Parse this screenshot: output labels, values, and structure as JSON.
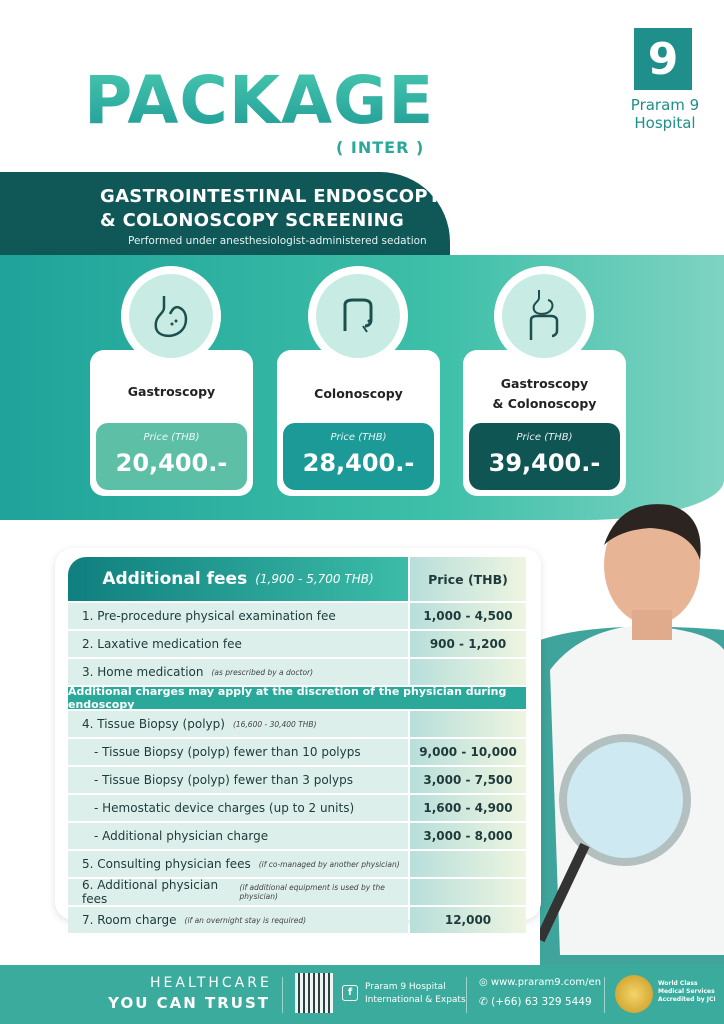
{
  "header": {
    "title": "PACKAGE",
    "subtitle": "( INTER )",
    "logo": {
      "mark": "9",
      "name_line1": "Praram 9",
      "name_line2": "Hospital"
    }
  },
  "banner": {
    "title_line1": "GASTROINTESTINAL ENDOSCOPY",
    "title_line2": "& COLONOSCOPY SCREENING",
    "subtitle": "Performed under anesthesiologist-administered sedation"
  },
  "packages": [
    {
      "name": "Gastroscopy",
      "price_label": "Price (THB)",
      "price": "20,400.-",
      "color": "#5cbfa6",
      "icon": "stomach-icon"
    },
    {
      "name": "Colonoscopy",
      "price_label": "Price (THB)",
      "price": "28,400.-",
      "color": "#1b9a98",
      "icon": "colon-icon"
    },
    {
      "name_line1": "Gastroscopy",
      "name_line2": "& Colonoscopy",
      "price_label": "Price (THB)",
      "price": "39,400.-",
      "color": "#0e5554",
      "icon": "digestive-system-icon"
    }
  ],
  "fees": {
    "title": "Additional fees",
    "range": "(1,900 - 5,700 THB)",
    "price_header": "Price (THB)",
    "rows": [
      {
        "label": "1. Pre-procedure physical examination fee",
        "note": "",
        "price": "1,000 - 4,500"
      },
      {
        "label": "2. Laxative medication fee",
        "note": "",
        "price": "900 - 1,200"
      },
      {
        "label": "3. Home medication",
        "note": "(as prescribed by a doctor)",
        "price": ""
      }
    ],
    "discretion_note": "Additional charges may apply at the discretion of the physician during endoscopy",
    "rows2": [
      {
        "label": "4. Tissue Biopsy (polyp)",
        "note": "(16,600 - 30,400 THB)",
        "price": ""
      },
      {
        "label": "- Tissue Biopsy (polyp) fewer than 10 polyps",
        "note": "",
        "price": "9,000 - 10,000"
      },
      {
        "label": "- Tissue Biopsy (polyp) fewer than 3 polyps",
        "note": "",
        "price": "3,000 - 7,500"
      },
      {
        "label": "- Hemostatic device charges (up to 2 units)",
        "note": "",
        "price": "1,600 - 4,900"
      },
      {
        "label": "- Additional physician charge",
        "note": "",
        "price": "3,000 - 8,000"
      },
      {
        "label": "5. Consulting physician fees",
        "note": "(if co-managed by another physician)",
        "price": ""
      },
      {
        "label": "6. Additional physician fees",
        "note": "(if additional equipment is used by the physician)",
        "price": ""
      },
      {
        "label": "7. Room charge",
        "note": "(if an overnight stay is required)",
        "price": "12,000"
      }
    ]
  },
  "footer": {
    "slogan1": "HEALTHCARE",
    "slogan2": "YOU CAN TRUST",
    "facebook_line1": "Praram 9 Hospital",
    "facebook_line2": "International & Expats",
    "website": "www.praram9.com/en",
    "phone": "(+66) 63 329 5449",
    "jci_line1": "World Class",
    "jci_line2": "Medical Services",
    "jci_line3": "Accredited by JCI"
  },
  "colors": {
    "teal": "#2aa89a",
    "dark_teal": "#0f5857",
    "footer": "#3aab9c"
  }
}
